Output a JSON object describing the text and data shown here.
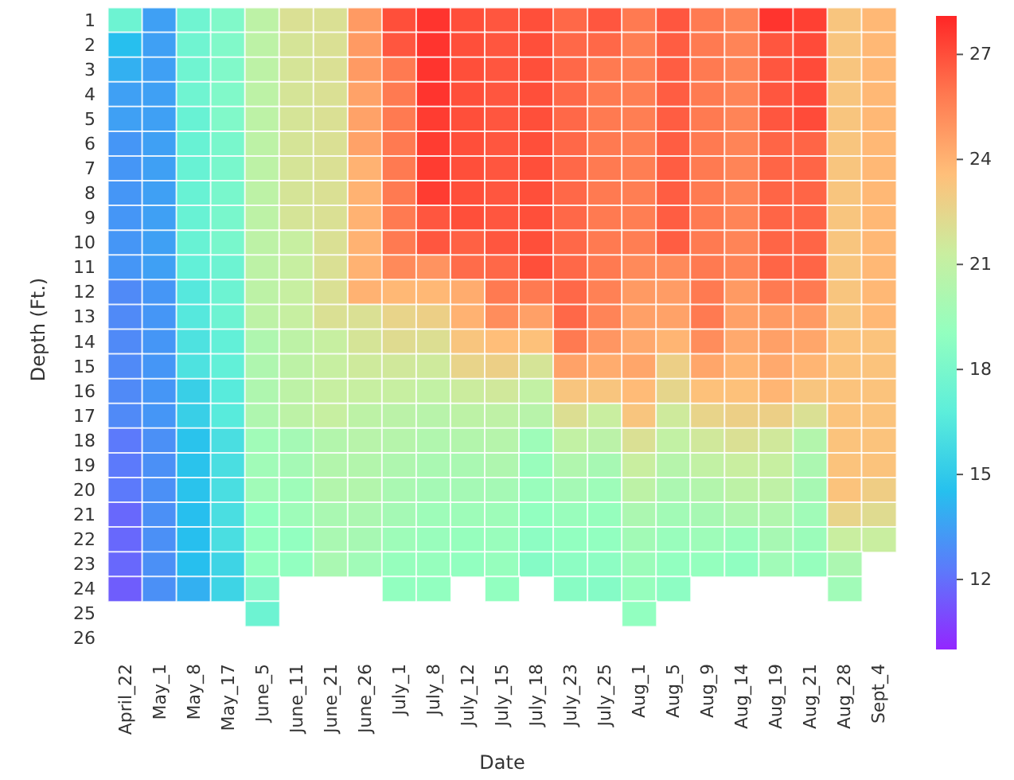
{
  "chart_data": {
    "type": "heatmap",
    "xlabel": "Date",
    "ylabel": "Depth (Ft.)",
    "categories": [
      "April_22",
      "May_1",
      "May_8",
      "May_17",
      "June_5",
      "June_11",
      "June_21",
      "June_26",
      "July_1",
      "July_8",
      "July_12",
      "July_15",
      "July_18",
      "July_23",
      "July_25",
      "Aug_1",
      "Aug_5",
      "Aug_9",
      "Aug_14",
      "Aug_19",
      "Aug_21",
      "Aug_28",
      "Sept_4"
    ],
    "y_categories": [
      "1",
      "2",
      "3",
      "4",
      "5",
      "6",
      "7",
      "8",
      "9",
      "10",
      "11",
      "12",
      "13",
      "14",
      "15",
      "16",
      "17",
      "18",
      "19",
      "20",
      "21",
      "22",
      "23",
      "24",
      "25",
      "26"
    ],
    "clim": [
      10,
      28.1
    ],
    "cticks": [
      12,
      15,
      18,
      21,
      24,
      27
    ],
    "cells": [
      [
        17.5,
        13.5,
        17.6,
        18.3,
        20.8,
        22,
        22,
        24.8,
        27,
        27.7,
        27,
        26.8,
        27,
        26.3,
        26.8,
        25.8,
        26.8,
        25.8,
        25.5,
        27.7,
        27.4,
        23.3,
        23.8
      ],
      [
        14.5,
        13.5,
        17.6,
        18.3,
        20.8,
        21.8,
        22,
        24.8,
        26.8,
        27.7,
        27,
        26.8,
        27,
        26.3,
        26.3,
        25.7,
        26.6,
        25.8,
        25.5,
        26.8,
        27.1,
        23.3,
        23.8
      ],
      [
        14,
        13.5,
        17.6,
        18.3,
        20.8,
        21.8,
        22,
        24.8,
        25.8,
        27.7,
        27,
        26.8,
        27,
        26.3,
        25.8,
        25.7,
        26.6,
        25.8,
        25.5,
        26.8,
        27.1,
        23.3,
        23.8
      ],
      [
        13.5,
        13.5,
        17.6,
        18.3,
        20.8,
        21.8,
        22,
        24.5,
        25.8,
        27.7,
        27,
        26.8,
        27,
        26.3,
        25.8,
        25.7,
        26.6,
        25.8,
        25.5,
        26.8,
        27.1,
        23.3,
        23.8
      ],
      [
        13.5,
        13.5,
        17.3,
        18.3,
        20.8,
        21.8,
        22,
        24.5,
        25.8,
        27.5,
        27,
        26.8,
        27,
        26.3,
        25.8,
        25.7,
        26.6,
        25.8,
        25.5,
        26.8,
        27.1,
        23.3,
        23.8
      ],
      [
        13.2,
        13.5,
        17.3,
        18,
        20.8,
        21.8,
        22,
        24.5,
        25.8,
        27.5,
        27,
        26.8,
        27,
        26.3,
        25.8,
        25.7,
        26.6,
        25.8,
        25.5,
        26.4,
        26.4,
        23.3,
        23.8
      ],
      [
        13.2,
        13.5,
        17.3,
        18,
        20.8,
        21.8,
        22,
        24,
        25.8,
        27.5,
        27,
        26.8,
        27,
        26.3,
        25.8,
        25.7,
        26.6,
        25.8,
        25.5,
        26.4,
        26.4,
        23.3,
        23.8
      ],
      [
        13.2,
        13.5,
        17.3,
        18,
        20.8,
        21.8,
        22,
        24,
        25.8,
        27.5,
        27,
        26.8,
        27,
        26.3,
        25.8,
        25.7,
        26.6,
        25.8,
        25.5,
        26.4,
        26.4,
        23.3,
        23.8
      ],
      [
        13.2,
        13.5,
        17.3,
        18,
        20.8,
        21.8,
        22,
        24,
        25.8,
        26.8,
        27,
        26.8,
        27,
        26.3,
        25.8,
        25.7,
        26.6,
        25.8,
        25.5,
        26.4,
        26.4,
        23.3,
        23.8
      ],
      [
        13.2,
        13.5,
        17.3,
        18,
        20.8,
        21.2,
        22,
        24,
        25.8,
        26.8,
        26.5,
        26.8,
        27,
        26.3,
        25.8,
        25.7,
        26.6,
        25.8,
        25.5,
        26.4,
        26.4,
        23.3,
        23.8
      ],
      [
        13.2,
        13.5,
        17,
        17.5,
        20.8,
        21.2,
        22,
        24,
        25.3,
        25,
        26.2,
        26.3,
        27,
        26.3,
        25.8,
        25.3,
        25.3,
        25.8,
        25.5,
        26.4,
        26.4,
        23.3,
        23.8
      ],
      [
        12.8,
        13.2,
        16.5,
        17.5,
        20.8,
        21.2,
        22,
        24,
        23.8,
        23.8,
        24.2,
        25.8,
        25.8,
        26.3,
        25.6,
        24.8,
        24.7,
        25.8,
        24.8,
        25.8,
        25.8,
        23.3,
        23.8
      ],
      [
        12.8,
        13.2,
        16.5,
        17.5,
        20.8,
        21.2,
        22,
        22,
        22.6,
        22.8,
        24,
        25.2,
        24.6,
        26.3,
        25.5,
        24.6,
        24.5,
        25.8,
        24.6,
        24.8,
        24.8,
        23.3,
        23.8
      ],
      [
        12.8,
        13.2,
        16.2,
        17,
        20.2,
        20.8,
        21.2,
        21.8,
        22.2,
        22.1,
        23.3,
        23.6,
        23.5,
        25.8,
        24.9,
        24.3,
        23.9,
        25.2,
        24.3,
        24.6,
        24.4,
        23.4,
        23.4
      ],
      [
        12.8,
        13.2,
        16.2,
        17,
        20.2,
        20.8,
        21.2,
        21.5,
        21.6,
        21.5,
        22.6,
        22.8,
        21.8,
        24.5,
        24.2,
        24.4,
        22.8,
        24.4,
        23.9,
        24.3,
        23.9,
        23.4,
        23.4
      ],
      [
        12.8,
        13.2,
        15.3,
        16.6,
        20.2,
        20.8,
        21.2,
        21.2,
        21.2,
        21,
        21.4,
        21.6,
        21,
        23.3,
        23.3,
        23.7,
        22.5,
        23.5,
        23.5,
        23.9,
        23.3,
        23.4,
        23.4
      ],
      [
        12.8,
        13.2,
        15.3,
        16.6,
        20.2,
        20.8,
        21.2,
        20.8,
        20.7,
        20.6,
        20.8,
        20.9,
        20.6,
        22.1,
        21.3,
        23.3,
        21.5,
        22.6,
        22.8,
        22.8,
        22,
        23.4,
        23.4
      ],
      [
        12.3,
        13,
        14.7,
        16,
        19.6,
        19.8,
        20.4,
        20.6,
        20.5,
        20.3,
        20.4,
        20.5,
        19.5,
        21,
        20.7,
        22,
        21,
        21.6,
        22,
        21.6,
        20.4,
        23.4,
        23.4
      ],
      [
        12.3,
        13,
        14.7,
        16,
        19.6,
        19.8,
        20.4,
        20.4,
        20.2,
        20,
        20,
        20.2,
        19.3,
        20.3,
        19.9,
        21.3,
        20.5,
        21,
        21.3,
        21.2,
        20.1,
        23.4,
        23.4
      ],
      [
        12.3,
        13,
        14.7,
        16,
        19.6,
        19.5,
        20.4,
        20.4,
        20,
        19.8,
        19.8,
        19.8,
        19.3,
        19.8,
        19.5,
        20.8,
        20.1,
        20.4,
        20.8,
        20.9,
        19.9,
        23.4,
        22.9
      ],
      [
        11.8,
        13,
        14.5,
        16,
        19,
        19.5,
        20,
        20.1,
        19.8,
        19.5,
        19.5,
        19.5,
        19,
        19.3,
        19.2,
        20.1,
        19.7,
        19.9,
        20.2,
        20.3,
        19.6,
        22.6,
        22.2
      ],
      [
        11.8,
        13,
        14.5,
        16,
        19,
        19,
        20,
        19.9,
        19.5,
        19.3,
        19.2,
        19.3,
        18.8,
        19,
        19,
        19.7,
        19.3,
        19.5,
        19.3,
        19.9,
        19.4,
        21.3,
        21.3
      ],
      [
        11.8,
        13,
        14.5,
        15.5,
        19,
        19,
        20,
        19.6,
        19.2,
        19.2,
        19,
        19.2,
        18.5,
        18.8,
        18.8,
        19.4,
        19,
        19.1,
        18.9,
        19.6,
        19.2,
        20.1,
        null
      ],
      [
        11.5,
        13,
        14,
        15.5,
        18.3,
        null,
        null,
        null,
        19,
        19,
        null,
        19,
        null,
        18.6,
        18.5,
        19.2,
        18.8,
        null,
        null,
        null,
        null,
        19.6,
        null
      ],
      [
        null,
        null,
        null,
        null,
        17.5,
        null,
        null,
        null,
        null,
        null,
        null,
        null,
        null,
        null,
        null,
        19,
        null,
        null,
        null,
        null,
        null,
        null,
        null
      ],
      [
        null,
        null,
        null,
        null,
        null,
        null,
        null,
        null,
        null,
        null,
        null,
        null,
        null,
        null,
        null,
        null,
        null,
        null,
        null,
        null,
        null,
        null,
        null
      ]
    ]
  }
}
